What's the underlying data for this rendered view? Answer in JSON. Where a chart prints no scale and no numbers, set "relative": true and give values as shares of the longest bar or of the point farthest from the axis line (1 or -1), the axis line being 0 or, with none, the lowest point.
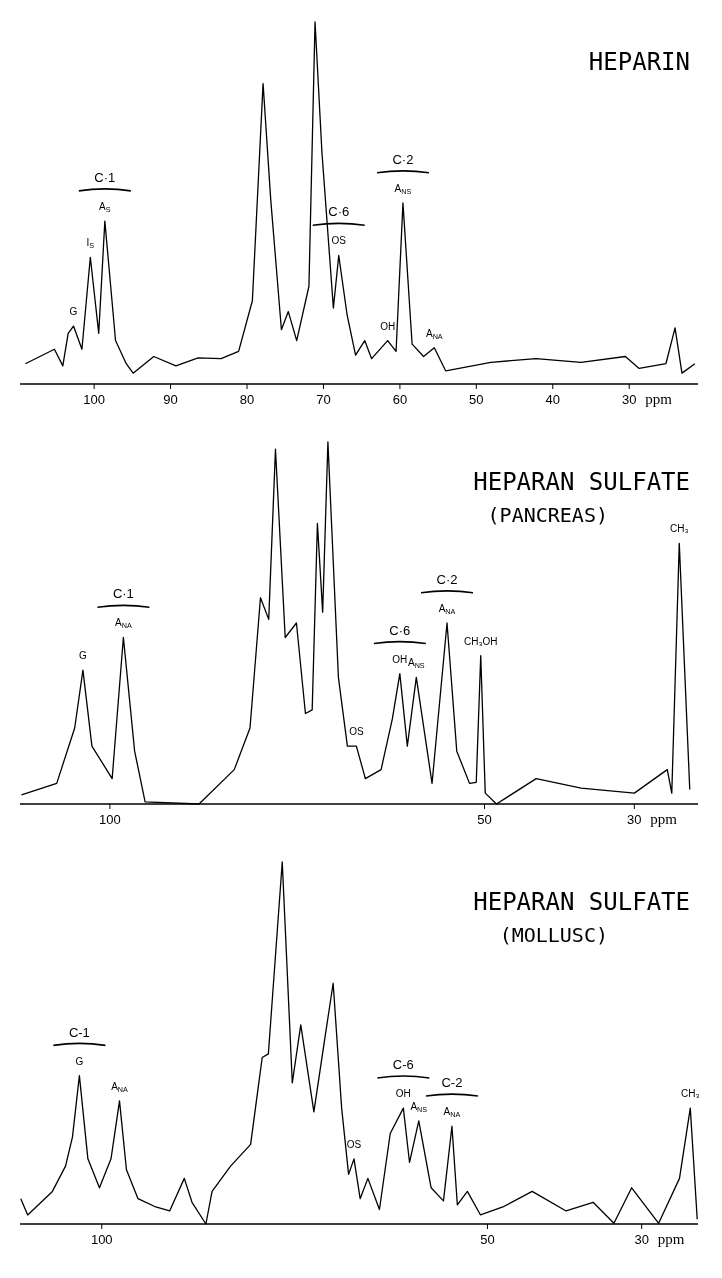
{
  "chart_data": [
    {
      "type": "line",
      "title": "HEPARIN",
      "xlabel": "ppm",
      "relative": true,
      "xlim": [
        109.7,
        21
      ],
      "xticks": [
        100,
        90,
        80,
        70,
        60,
        50,
        40,
        30
      ],
      "series": [
        {
          "color": "#000000",
          "x": [
            109.0,
            105.2,
            104.1,
            103.4,
            102.7,
            101.6,
            100.5,
            99.4,
            98.6,
            97.2,
            95.8,
            94.9,
            92.2,
            89.3,
            86.4,
            83.4,
            81.1,
            79.3,
            77.9,
            76.9,
            75.5,
            74.6,
            73.5,
            71.9,
            71.1,
            70.2,
            68.7,
            68.0,
            66.9,
            65.8,
            64.6,
            63.7,
            61.6,
            60.5,
            59.6,
            58.4,
            56.9,
            55.5,
            54.0,
            48.1,
            42.2,
            36.3,
            30.5,
            28.7,
            25.2,
            24.0,
            23.1,
            21.4
          ],
          "values": [
            0.056,
            0.096,
            0.05,
            0.14,
            0.16,
            0.096,
            0.35,
            0.14,
            0.45,
            0.12,
            0.056,
            0.03,
            0.076,
            0.05,
            0.072,
            0.07,
            0.09,
            0.23,
            0.83,
            0.51,
            0.15,
            0.2,
            0.12,
            0.27,
            1.0,
            0.64,
            0.21,
            0.355,
            0.19,
            0.08,
            0.12,
            0.07,
            0.12,
            0.09,
            0.5,
            0.11,
            0.076,
            0.1,
            0.036,
            0.06,
            0.07,
            0.06,
            0.076,
            0.043,
            0.056,
            0.155,
            0.03,
            0.056
          ]
        }
      ],
      "annotations": [
        {
          "text": "G",
          "x": 102.7,
          "y": 0.16
        },
        {
          "text": "I$_{S}$",
          "x": 100.5,
          "y": 0.35
        },
        {
          "text": "A$_{S}$",
          "x": 98.6,
          "y": 0.45
        },
        {
          "text": "OS",
          "x": 68.0,
          "y": 0.355
        },
        {
          "text": "OH",
          "x": 61.6,
          "y": 0.12
        },
        {
          "text": "A$_{NS}$",
          "x": 59.6,
          "y": 0.5
        },
        {
          "text": "A$_{NA}$",
          "x": 55.5,
          "y": 0.1
        },
        {
          "text": "C·1",
          "x": 98.6,
          "y": 0.45
        },
        {
          "text": "C·6",
          "x": 68.0,
          "y": 0.355
        },
        {
          "text": "C·2",
          "x": 59.6,
          "y": 0.5
        }
      ]
    },
    {
      "type": "line",
      "title": "HEPARAN SULFATE",
      "subtitle": "(PANCREAS)",
      "xlabel": "ppm",
      "relative": true,
      "xlim": [
        112,
        21.5
      ],
      "xticks": [
        100,
        50,
        30
      ],
      "series": [
        {
          "color": "#000000",
          "x": [
            111.8,
            107.1,
            104.7,
            103.6,
            102.4,
            99.7,
            98.2,
            96.7,
            95.3,
            88.1,
            83.4,
            81.3,
            79.9,
            78.8,
            77.9,
            76.6,
            75.1,
            73.9,
            73.0,
            72.3,
            71.6,
            70.9,
            69.5,
            68.3,
            67.1,
            65.9,
            63.8,
            62.3,
            61.3,
            60.3,
            59.1,
            57.0,
            55.0,
            53.7,
            52.0,
            51.1,
            50.5,
            49.9,
            48.4,
            43.1,
            37.1,
            30.0,
            25.6,
            25.0,
            24.0,
            22.6
          ],
          "values": [
            0.025,
            0.057,
            0.21,
            0.37,
            0.16,
            0.07,
            0.46,
            0.146,
            0.006,
            0,
            0.095,
            0.21,
            0.57,
            0.51,
            0.98,
            0.46,
            0.5,
            0.25,
            0.26,
            0.775,
            0.53,
            1.0,
            0.35,
            0.16,
            0.16,
            0.07,
            0.095,
            0.235,
            0.36,
            0.16,
            0.35,
            0.057,
            0.5,
            0.146,
            0.057,
            0.06,
            0.41,
            0.03,
            0,
            0.07,
            0.044,
            0.03,
            0.095,
            0.03,
            0.72,
            0.04
          ]
        }
      ],
      "annotations": [
        {
          "text": "G",
          "x": 103.6,
          "y": 0.37
        },
        {
          "text": "A$_{NA}$",
          "x": 98.2,
          "y": 0.46
        },
        {
          "text": "OS",
          "x": 67.1,
          "y": 0.16
        },
        {
          "text": "OH",
          "x": 61.3,
          "y": 0.36
        },
        {
          "text": "A$_{NS}$",
          "x": 59.1,
          "y": 0.35
        },
        {
          "text": "A$_{NA}$",
          "x": 55.0,
          "y": 0.5
        },
        {
          "text": "CH₃OH",
          "x": 50.5,
          "y": 0.41
        },
        {
          "text": "CH₃",
          "x": 24.0,
          "y": 0.72
        },
        {
          "text": "C·1",
          "x": 98.2,
          "y": 0.46
        },
        {
          "text": "C·6",
          "x": 61.3,
          "y": 0.36
        },
        {
          "text": "C·2",
          "x": 55.0,
          "y": 0.5
        }
      ]
    },
    {
      "type": "line",
      "title": "HEPARAN SULFATE",
      "subtitle": "(MOLLUSC)",
      "xlabel": "ppm",
      "relative": true,
      "xlim": [
        110.6,
        22.7
      ],
      "xticks": [
        100,
        50,
        30
      ],
      "series": [
        {
          "color": "#000000",
          "x": [
            110.5,
            109.6,
            106.4,
            104.7,
            103.8,
            102.9,
            101.8,
            100.3,
            98.8,
            97.7,
            96.8,
            95.3,
            93.0,
            91.2,
            89.3,
            88.3,
            86.5,
            85.7,
            83.3,
            80.7,
            79.2,
            78.4,
            76.6,
            75.3,
            74.2,
            72.5,
            71.1,
            70.0,
            68.9,
            68.0,
            67.3,
            66.5,
            65.5,
            64.0,
            62.6,
            60.9,
            60.1,
            58.9,
            57.3,
            55.7,
            54.6,
            53.9,
            52.6,
            50.9,
            48.0,
            44.2,
            39.8,
            36.3,
            33.6,
            31.3,
            27.8,
            25.1,
            23.7,
            22.8
          ],
          "values": [
            0.07,
            0.025,
            0.09,
            0.16,
            0.24,
            0.41,
            0.18,
            0.1,
            0.18,
            0.34,
            0.15,
            0.07,
            0.047,
            0.036,
            0.126,
            0.06,
            0,
            0.09,
            0.16,
            0.22,
            0.46,
            0.47,
            1.0,
            0.39,
            0.55,
            0.31,
            0.51,
            0.665,
            0.32,
            0.137,
            0.18,
            0.07,
            0.126,
            0.04,
            0.25,
            0.32,
            0.17,
            0.285,
            0.1,
            0.064,
            0.27,
            0.053,
            0.09,
            0.025,
            0.047,
            0.09,
            0.036,
            0.06,
            0.002,
            0.1,
            0.002,
            0.126,
            0.32,
            0.013
          ]
        }
      ],
      "annotations": [
        {
          "text": "G",
          "x": 102.9,
          "y": 0.41
        },
        {
          "text": "A$_{NA}$",
          "x": 97.7,
          "y": 0.34
        },
        {
          "text": "OS",
          "x": 67.3,
          "y": 0.18
        },
        {
          "text": "OH",
          "x": 60.9,
          "y": 0.32
        },
        {
          "text": "A$_{NS}$",
          "x": 58.9,
          "y": 0.285
        },
        {
          "text": "A$_{NA}$",
          "x": 54.6,
          "y": 0.27
        },
        {
          "text": "CH₃",
          "x": 23.7,
          "y": 0.32
        },
        {
          "text": "C-1",
          "x": 102.9,
          "y": 0.41
        },
        {
          "text": "C-6",
          "x": 60.9,
          "y": 0.32
        },
        {
          "text": "C-2",
          "x": 54.6,
          "y": 0.27
        }
      ]
    }
  ]
}
